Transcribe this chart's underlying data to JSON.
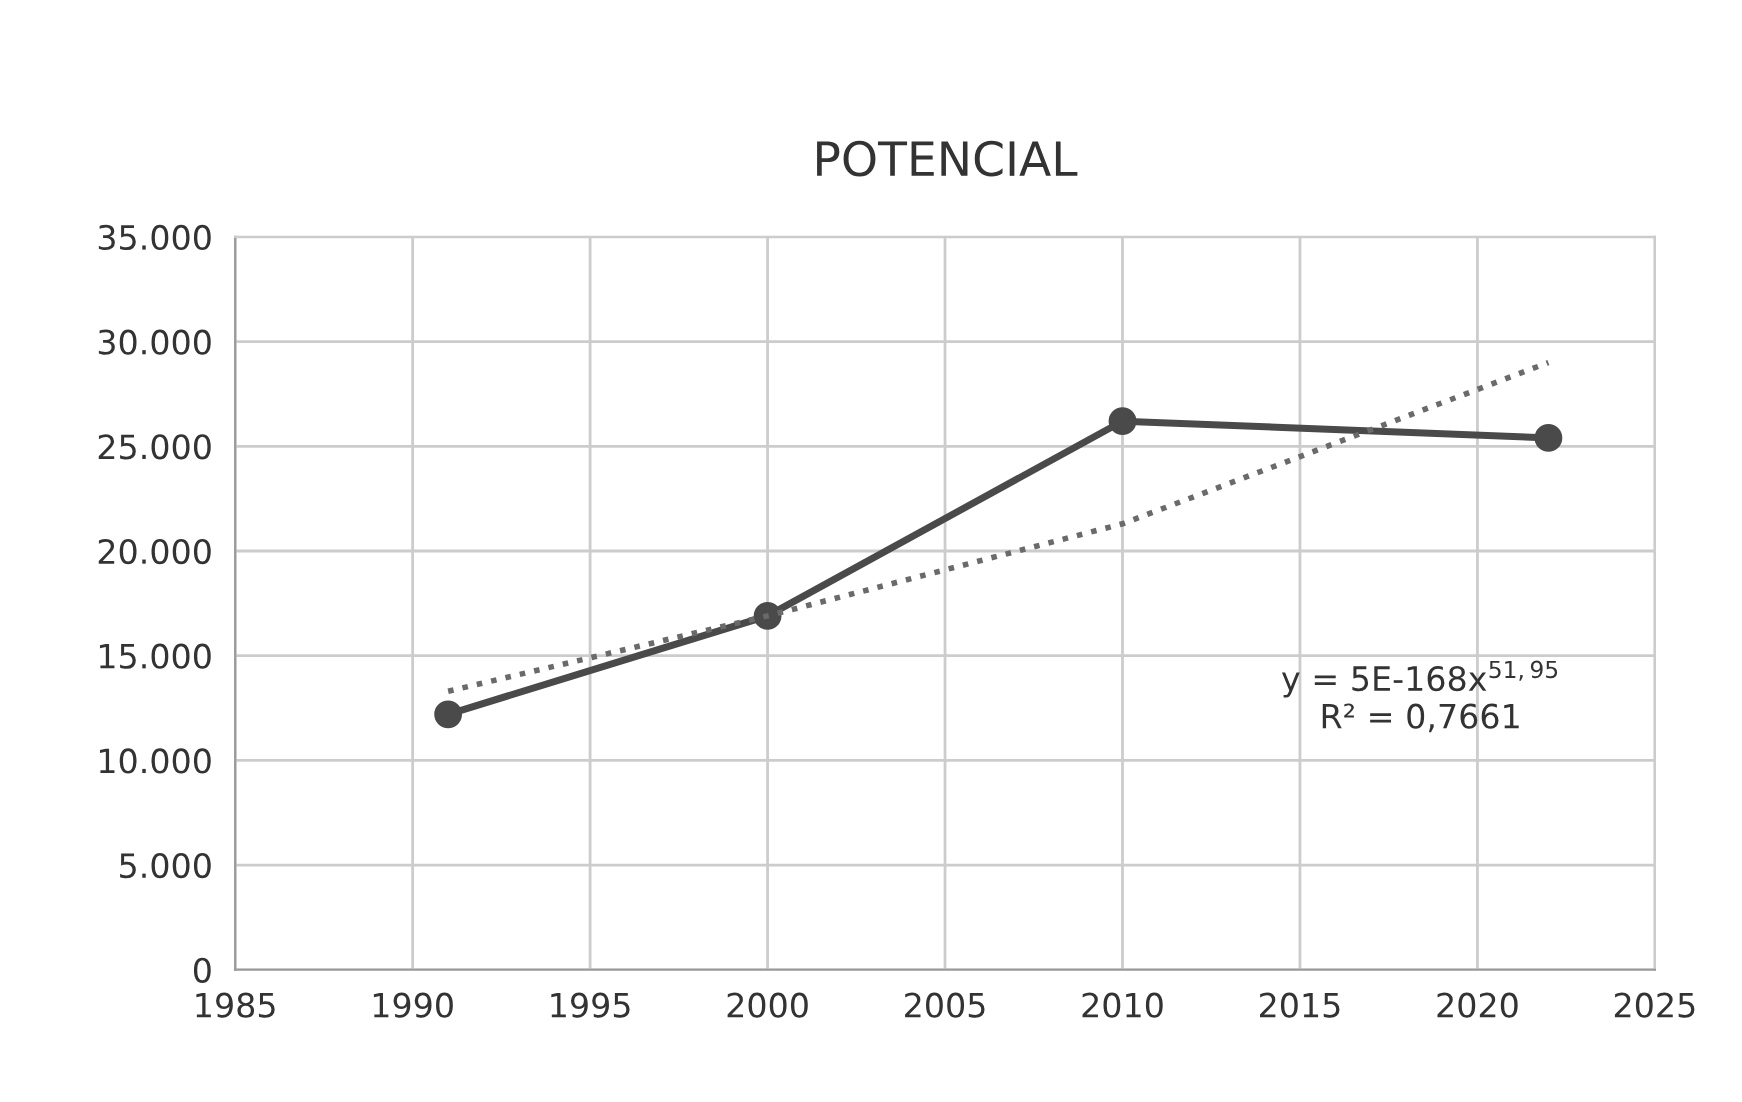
{
  "chart_data": {
    "type": "line",
    "title": "POTENCIAL",
    "x": [
      1991,
      2000,
      2010,
      2022
    ],
    "series": [
      {
        "color": "#4a4a4a",
        "values": [
          12200,
          16900,
          26200,
          25400
        ],
        "marker": "circle",
        "line_style": "solid"
      },
      {
        "type": "line",
        "color": "#6a6a6a",
        "x": [
          1991,
          2000,
          2010,
          2022
        ],
        "values": [
          13300,
          16900,
          21300,
          29000
        ],
        "marker": "none",
        "line_style": "dotted"
      }
    ],
    "xlim": [
      1985,
      2025
    ],
    "xticks": [
      1985,
      1990,
      1995,
      2000,
      2005,
      2010,
      2015,
      2020,
      2025
    ],
    "ylim": [
      0,
      35000
    ],
    "yticks": [
      {
        "value": 0,
        "label": "0"
      },
      {
        "value": 5000,
        "label": "5.000"
      },
      {
        "value": 10000,
        "label": "10.000"
      },
      {
        "value": 15000,
        "label": "15.000"
      },
      {
        "value": 20000,
        "label": "20.000"
      },
      {
        "value": 25000,
        "label": "25.000"
      },
      {
        "value": 30000,
        "label": "30.000"
      },
      {
        "value": 35000,
        "label": "35.000"
      }
    ],
    "annotations": [
      "y = 5E-168x$^{51,95}$\nR² = 0,7661"
    ],
    "grid": true,
    "legend": false
  }
}
